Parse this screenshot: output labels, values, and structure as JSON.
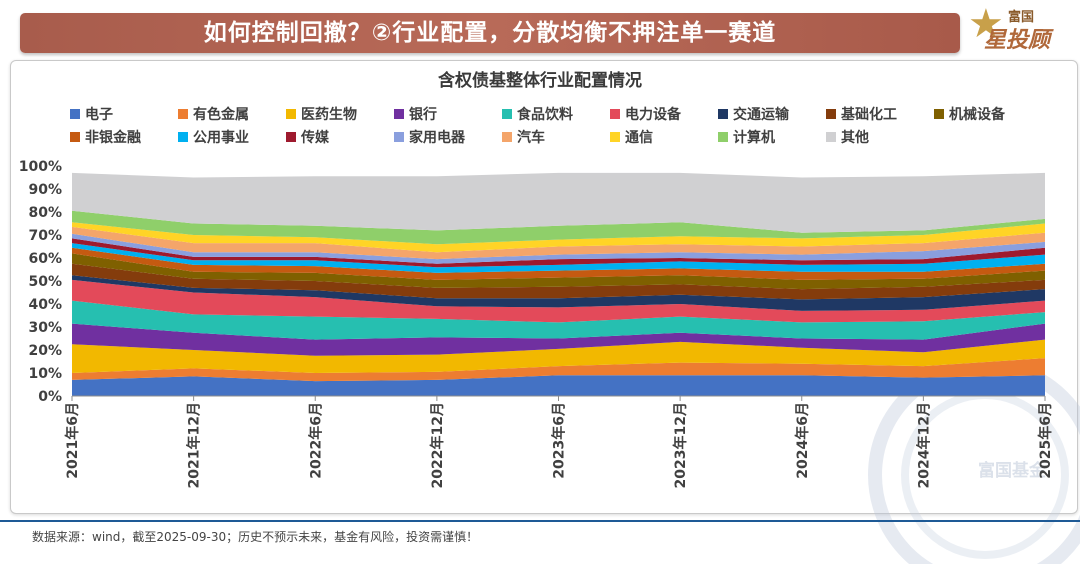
{
  "banner": {
    "title": "如何控制回撤？②行业配置，分散均衡不押注单一赛道"
  },
  "logo": {
    "top_text": "富国",
    "main_text": "星投顾"
  },
  "watermark": {
    "text": "富国基金"
  },
  "footer": {
    "source": "数据来源：wind，截至2025-09-30；历史不预示未来，基金有风险，投资需谨慎！"
  },
  "chart_data": {
    "type": "area",
    "stacked": true,
    "title": "含权债基整体行业配置情况",
    "x": [
      "2021年6月",
      "2021年12月",
      "2022年6月",
      "2022年12月",
      "2023年6月",
      "2023年12月",
      "2024年6月",
      "2024年12月",
      "2025年6月"
    ],
    "ylim": [
      0,
      100
    ],
    "yticks": [
      "0%",
      "10%",
      "20%",
      "30%",
      "40%",
      "50%",
      "60%",
      "70%",
      "80%",
      "90%",
      "100%"
    ],
    "ytick_values": [
      0,
      10,
      20,
      30,
      40,
      50,
      60,
      70,
      80,
      90,
      100
    ],
    "legend_position": "top",
    "series": [
      {
        "name": "电子",
        "color": "#4472c4",
        "values": [
          7,
          8.5,
          6.5,
          7,
          9,
          9,
          9,
          8,
          9
        ]
      },
      {
        "name": "有色金属",
        "color": "#ed7d31",
        "values": [
          3,
          3.5,
          3.5,
          3.5,
          4,
          5.5,
          5,
          5,
          7.5
        ]
      },
      {
        "name": "医药生物",
        "color": "#f2b800",
        "values": [
          12.5,
          8,
          7.5,
          7.5,
          7.5,
          9,
          7,
          6,
          8
        ]
      },
      {
        "name": "银行",
        "color": "#7030a0",
        "values": [
          9,
          7.5,
          7,
          7.5,
          4.5,
          4,
          4,
          5.5,
          7
        ]
      },
      {
        "name": "食品饮料",
        "color": "#26bfb0",
        "values": [
          10,
          8,
          10,
          8,
          7,
          7,
          7,
          8,
          5
        ]
      },
      {
        "name": "电力设备",
        "color": "#e34a5a",
        "values": [
          9,
          9.5,
          8.5,
          5.5,
          6.5,
          5.5,
          5,
          5,
          5
        ]
      },
      {
        "name": "交通运输",
        "color": "#1f3864",
        "values": [
          2,
          2,
          3,
          3.5,
          4,
          4,
          5,
          5.5,
          5
        ]
      },
      {
        "name": "基础化工",
        "color": "#843c0c",
        "values": [
          5,
          4,
          4,
          4.5,
          5,
          4.5,
          4.5,
          4.5,
          4
        ]
      },
      {
        "name": "机械设备",
        "color": "#7f6000",
        "values": [
          4.5,
          3,
          3.5,
          3.5,
          4,
          4,
          4,
          3.5,
          4
        ]
      },
      {
        "name": "非银金融",
        "color": "#c55a11",
        "values": [
          2.5,
          3,
          3,
          3,
          3,
          3,
          3.5,
          3,
          3
        ]
      },
      {
        "name": "公用事业",
        "color": "#00b0f0",
        "values": [
          2,
          2,
          2.5,
          2.5,
          2.5,
          3,
          3,
          3.5,
          4
        ]
      },
      {
        "name": "传媒",
        "color": "#9e1a2e",
        "values": [
          2,
          1.5,
          1.5,
          1.5,
          2.5,
          1.5,
          2,
          2,
          3
        ]
      },
      {
        "name": "家用电器",
        "color": "#8a9fde",
        "values": [
          2,
          2,
          2,
          2,
          2,
          2.5,
          2.5,
          3.5,
          2.5
        ]
      },
      {
        "name": "汽车",
        "color": "#f4a56a",
        "values": [
          3,
          4,
          4,
          3,
          3.5,
          3.5,
          3.5,
          3.5,
          4
        ]
      },
      {
        "name": "通信",
        "color": "#ffd426",
        "values": [
          2,
          3.5,
          2.5,
          3.5,
          3,
          3.5,
          3.5,
          3.5,
          4
        ]
      },
      {
        "name": "计算机",
        "color": "#8fcf6a",
        "values": [
          5,
          5,
          5,
          6,
          6,
          6,
          2.5,
          2,
          2
        ]
      },
      {
        "name": "其他",
        "color": "#d0d0d2",
        "values": [
          16.5,
          20,
          21.5,
          23.5,
          23,
          21.5,
          24,
          23.5,
          20
        ]
      }
    ]
  }
}
